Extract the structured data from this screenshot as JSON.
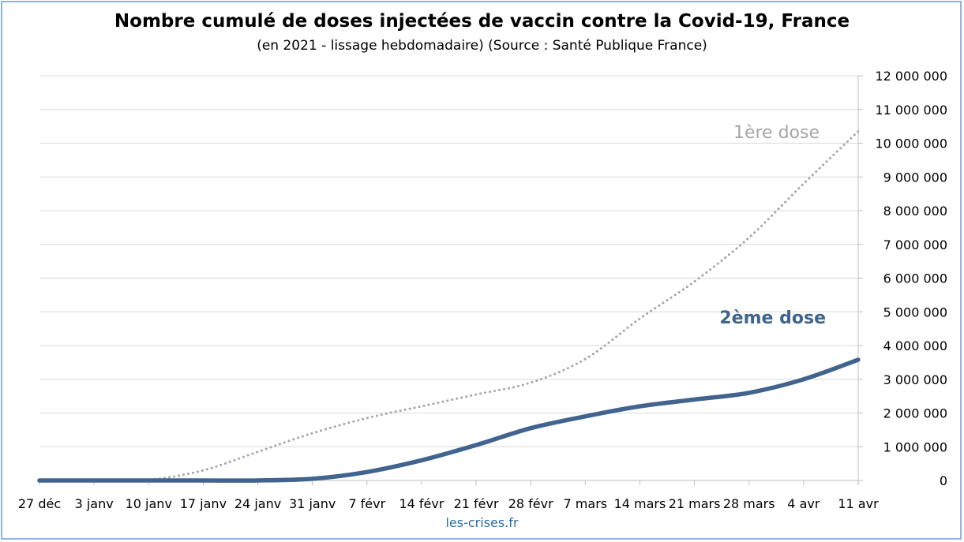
{
  "chart_data": {
    "type": "line",
    "title": "Nombre cumulé de doses injectées de vaccin contre la Covid-19, France",
    "subtitle": "(en 2021 - lissage hebdomadaire) (Source : Santé Publique France)",
    "xlabel": "",
    "ylabel": "",
    "categories": [
      "27 déc",
      "3 janv",
      "10 janv",
      "17 janv",
      "24 janv",
      "31 janv",
      "7 févr",
      "14 févr",
      "21 févr",
      "28 févr",
      "7 mars",
      "14 mars",
      "21 mars",
      "28 mars",
      "4 avr",
      "11 avr"
    ],
    "y_ticks": [
      "0",
      "1 000 000",
      "2 000 000",
      "3 000 000",
      "4 000 000",
      "5 000 000",
      "6 000 000",
      "7 000 000",
      "8 000 000",
      "9 000 000",
      "10 000 000",
      "11 000 000",
      "12 000 000"
    ],
    "ylim": [
      0,
      12000000
    ],
    "y_axis_side": "right",
    "grid": true,
    "legend": "inline-labels",
    "series": [
      {
        "name": "1ère dose",
        "style": "dotted",
        "color": "#a6a6a6",
        "values": [
          0,
          0,
          20000,
          300000,
          850000,
          1400000,
          1850000,
          2200000,
          2550000,
          2900000,
          3600000,
          4800000,
          5900000,
          7200000,
          8800000,
          10350000
        ]
      },
      {
        "name": "2ème dose",
        "style": "solid",
        "color": "#41648e",
        "values": [
          0,
          0,
          0,
          0,
          0,
          50000,
          250000,
          600000,
          1050000,
          1550000,
          1900000,
          2200000,
          2400000,
          2600000,
          3000000,
          3580000
        ]
      }
    ]
  },
  "footer": {
    "credit": "les-crises.fr"
  }
}
